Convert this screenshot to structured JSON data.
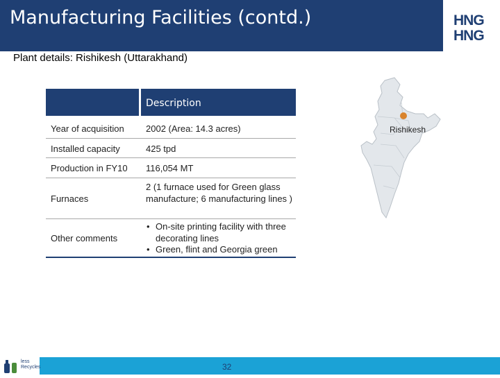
{
  "header": {
    "title": "Manufacturing Facilities (contd.)",
    "logo_text_top": "HNG",
    "logo_text_bottom": "HNG"
  },
  "subtitle": "Plant details: Rishikesh (Uttarakhand)",
  "table": {
    "header": "Description",
    "rows": [
      {
        "label": "Year of acquisition",
        "value": "2002 (Area: 14.3 acres)"
      },
      {
        "label": "Installed capacity",
        "value": "425 tpd"
      },
      {
        "label": "Production in FY10",
        "value": "116,054 MT"
      },
      {
        "label": "Furnaces",
        "value": "2 (1 furnace used for Green glass manufacture; 6 manufacturing lines )"
      },
      {
        "label": "Other comments",
        "bullets": [
          "On-site printing facility with three decorating lines",
          "Green, flint and Georgia green"
        ]
      }
    ]
  },
  "map": {
    "label": "Rishikesh",
    "marker_color": "#d9832c",
    "fill_color": "#e3e7eb"
  },
  "footer": {
    "page_number": "32",
    "logo_text": "less Recycles"
  },
  "colors": {
    "brand_navy": "#1f3f73",
    "footer_blue": "#1ba2d6"
  }
}
